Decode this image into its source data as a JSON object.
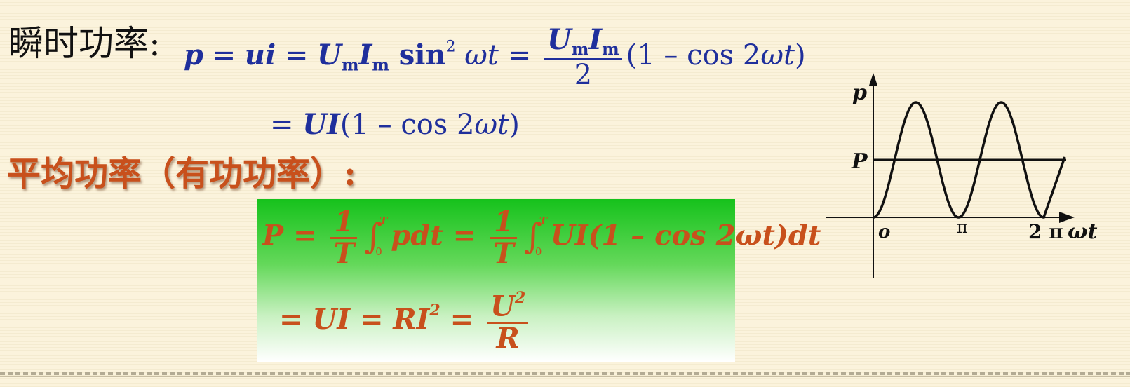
{
  "heading_instant": "瞬时功率:",
  "heading_average": "平均功率（有功功率）:",
  "colors": {
    "formula_blue": "#1f2f9c",
    "formula_orange": "#c8501c",
    "box_green": "#16c21c"
  },
  "eq_instant": {
    "p": "p",
    "eq": " = ",
    "ui": "ui",
    "Um_U": "U",
    "m": "m",
    "Im_I": "I",
    "sin": " sin",
    "sq": "2",
    "wt": " ωt ",
    "two": "2",
    "open": "(1 – cos 2",
    "wt2": "ωt",
    "close": ")"
  },
  "eq_instant_2": {
    "eq": "= ",
    "UI": "UI",
    "rest": "(1 – cos 2",
    "wt": "ωt",
    "close": ")"
  },
  "eq_average": {
    "P": "P",
    "eq": " = ",
    "one": "1",
    "T": "T",
    "upper": "T",
    "lower": "0",
    "pdt": "pdt",
    "UI": "UI",
    "paren": "(1 – cos 2",
    "wt": "ωt",
    "closedt": ")dt"
  },
  "eq_average_2": {
    "eq": "= ",
    "UI": "UI",
    "RI": "RI",
    "sq": "2",
    "U": "U",
    "R": "R"
  },
  "graph": {
    "y_label": "p",
    "p_level_label": "P",
    "origin": "o",
    "pi": "π",
    "two_pi": "2 π",
    "x_label": "ωt"
  }
}
